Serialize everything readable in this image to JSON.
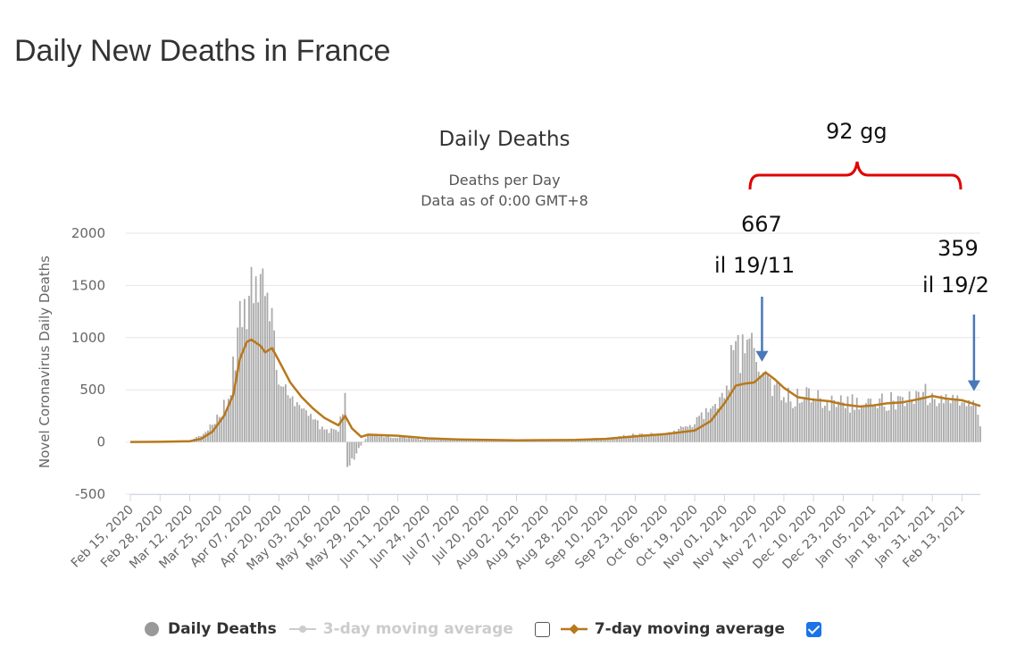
{
  "page": {
    "title": "Daily New Deaths in France"
  },
  "chart_data": {
    "type": "bar",
    "title": "Daily Deaths",
    "subtitle_lines": [
      "Deaths per Day",
      "Data as of 0:00 GMT+8"
    ],
    "ylabel": "Novel Coronavirus Daily Deaths",
    "xlabel": "",
    "ylim": [
      -500,
      2000
    ],
    "yticks": [
      2000,
      1500,
      1000,
      500,
      0,
      -500
    ],
    "grid": true,
    "x_range": [
      "2020-02-15",
      "2021-02-21"
    ],
    "x_tick_labels": [
      "Feb 15, 2020",
      "Feb 28, 2020",
      "Mar 12, 2020",
      "Mar 25, 2020",
      "Apr 07, 2020",
      "Apr 20, 2020",
      "May 03, 2020",
      "May 16, 2020",
      "May 29, 2020",
      "Jun 11, 2020",
      "Jun 24, 2020",
      "Jul 07, 2020",
      "Jul 20, 2020",
      "Aug 02, 2020",
      "Aug 15, 2020",
      "Aug 28, 2020",
      "Sep 10, 2020",
      "Sep 23, 2020",
      "Oct 06, 2020",
      "Oct 19, 2020",
      "Nov 01, 2020",
      "Nov 14, 2020",
      "Nov 27, 2020",
      "Dec 10, 2020",
      "Dec 23, 2020",
      "Jan 05, 2021",
      "Jan 18, 2021",
      "Jan 31, 2021",
      "Feb 13, 2021"
    ],
    "series": [
      {
        "name": "Daily Deaths",
        "kind": "bar",
        "color": "#aaaaaa",
        "approx_points": [
          [
            "2020-02-15",
            0
          ],
          [
            "2020-02-28",
            1
          ],
          [
            "2020-03-12",
            15
          ],
          [
            "2020-03-20",
            110
          ],
          [
            "2020-03-25",
            240
          ],
          [
            "2020-03-30",
            450
          ],
          [
            "2020-04-03",
            1350
          ],
          [
            "2020-04-04",
            1100
          ],
          [
            "2020-04-07",
            1400
          ],
          [
            "2020-04-09",
            1330
          ],
          [
            "2020-04-15",
            1430
          ],
          [
            "2020-04-20",
            550
          ],
          [
            "2020-04-25",
            420
          ],
          [
            "2020-05-03",
            250
          ],
          [
            "2020-05-10",
            120
          ],
          [
            "2020-05-16",
            100
          ],
          [
            "2020-05-19",
            470
          ],
          [
            "2020-05-20",
            -240
          ],
          [
            "2020-05-29",
            65
          ],
          [
            "2020-06-15",
            35
          ],
          [
            "2020-07-01",
            20
          ],
          [
            "2020-07-20",
            15
          ],
          [
            "2020-08-15",
            18
          ],
          [
            "2020-09-10",
            35
          ],
          [
            "2020-09-23",
            70
          ],
          [
            "2020-10-06",
            75
          ],
          [
            "2020-10-19",
            170
          ],
          [
            "2020-10-26",
            320
          ],
          [
            "2020-11-01",
            420
          ],
          [
            "2020-11-05",
            880
          ],
          [
            "2020-11-10",
            850
          ],
          [
            "2020-11-14",
            900
          ],
          [
            "2020-11-19",
            667
          ],
          [
            "2020-11-27",
            430
          ],
          [
            "2020-12-10",
            420
          ],
          [
            "2020-12-23",
            380
          ],
          [
            "2021-01-05",
            350
          ],
          [
            "2021-01-18",
            430
          ],
          [
            "2021-01-31",
            470
          ],
          [
            "2021-02-13",
            380
          ],
          [
            "2021-02-19",
            359
          ],
          [
            "2021-02-21",
            150
          ]
        ]
      },
      {
        "name": "3-day moving average",
        "kind": "line",
        "color": "#cccccc",
        "visible": false
      },
      {
        "name": "7-day moving average",
        "kind": "line",
        "color": "#b8781c",
        "visible": true,
        "points": [
          [
            "2020-02-15",
            0
          ],
          [
            "2020-02-28",
            2
          ],
          [
            "2020-03-12",
            8
          ],
          [
            "2020-03-17",
            30
          ],
          [
            "2020-03-22",
            100
          ],
          [
            "2020-03-27",
            250
          ],
          [
            "2020-03-31",
            450
          ],
          [
            "2020-04-03",
            800
          ],
          [
            "2020-04-06",
            960
          ],
          [
            "2020-04-08",
            980
          ],
          [
            "2020-04-12",
            920
          ],
          [
            "2020-04-14",
            860
          ],
          [
            "2020-04-17",
            900
          ],
          [
            "2020-04-20",
            780
          ],
          [
            "2020-04-25",
            570
          ],
          [
            "2020-04-30",
            430
          ],
          [
            "2020-05-05",
            320
          ],
          [
            "2020-05-10",
            230
          ],
          [
            "2020-05-16",
            160
          ],
          [
            "2020-05-19",
            250
          ],
          [
            "2020-05-22",
            130
          ],
          [
            "2020-05-26",
            50
          ],
          [
            "2020-05-29",
            70
          ],
          [
            "2020-06-11",
            60
          ],
          [
            "2020-06-24",
            35
          ],
          [
            "2020-07-07",
            25
          ],
          [
            "2020-07-20",
            20
          ],
          [
            "2020-08-02",
            15
          ],
          [
            "2020-08-15",
            18
          ],
          [
            "2020-08-28",
            20
          ],
          [
            "2020-09-10",
            30
          ],
          [
            "2020-09-23",
            55
          ],
          [
            "2020-10-06",
            75
          ],
          [
            "2020-10-19",
            110
          ],
          [
            "2020-10-26",
            200
          ],
          [
            "2020-11-01",
            370
          ],
          [
            "2020-11-06",
            540
          ],
          [
            "2020-11-10",
            560
          ],
          [
            "2020-11-14",
            570
          ],
          [
            "2020-11-19",
            667
          ],
          [
            "2020-11-23",
            600
          ],
          [
            "2020-11-27",
            520
          ],
          [
            "2020-12-03",
            430
          ],
          [
            "2020-12-10",
            405
          ],
          [
            "2020-12-17",
            390
          ],
          [
            "2020-12-23",
            360
          ],
          [
            "2020-12-30",
            340
          ],
          [
            "2021-01-05",
            350
          ],
          [
            "2021-01-11",
            370
          ],
          [
            "2021-01-18",
            380
          ],
          [
            "2021-01-25",
            410
          ],
          [
            "2021-01-31",
            440
          ],
          [
            "2021-02-06",
            415
          ],
          [
            "2021-02-13",
            400
          ],
          [
            "2021-02-19",
            359
          ],
          [
            "2021-02-21",
            345
          ]
        ]
      }
    ],
    "annotations": [
      {
        "date": "2020-11-19",
        "value": 667,
        "lines": [
          "667",
          "il  19/11"
        ]
      },
      {
        "date": "2021-02-19",
        "value": 359,
        "lines": [
          "359",
          "il 19/2"
        ]
      },
      {
        "range": [
          "2020-11-19",
          "2021-02-19"
        ],
        "label": "92 gg"
      }
    ]
  },
  "legend": {
    "items": [
      {
        "label": "Daily Deaths",
        "color": "#999999",
        "marker": "circle",
        "active": true
      },
      {
        "label": "3-day moving average",
        "color": "#cccccc",
        "marker": "line-dot",
        "active": false
      },
      {
        "label": "7-day moving average",
        "color": "#b8781c",
        "marker": "line-diamond",
        "active": true
      }
    ]
  },
  "colors": {
    "gridline": "#e6e6e6",
    "axis_text": "#666666",
    "annotation_bracket": "#e00000",
    "arrow": "#4a78b8"
  }
}
